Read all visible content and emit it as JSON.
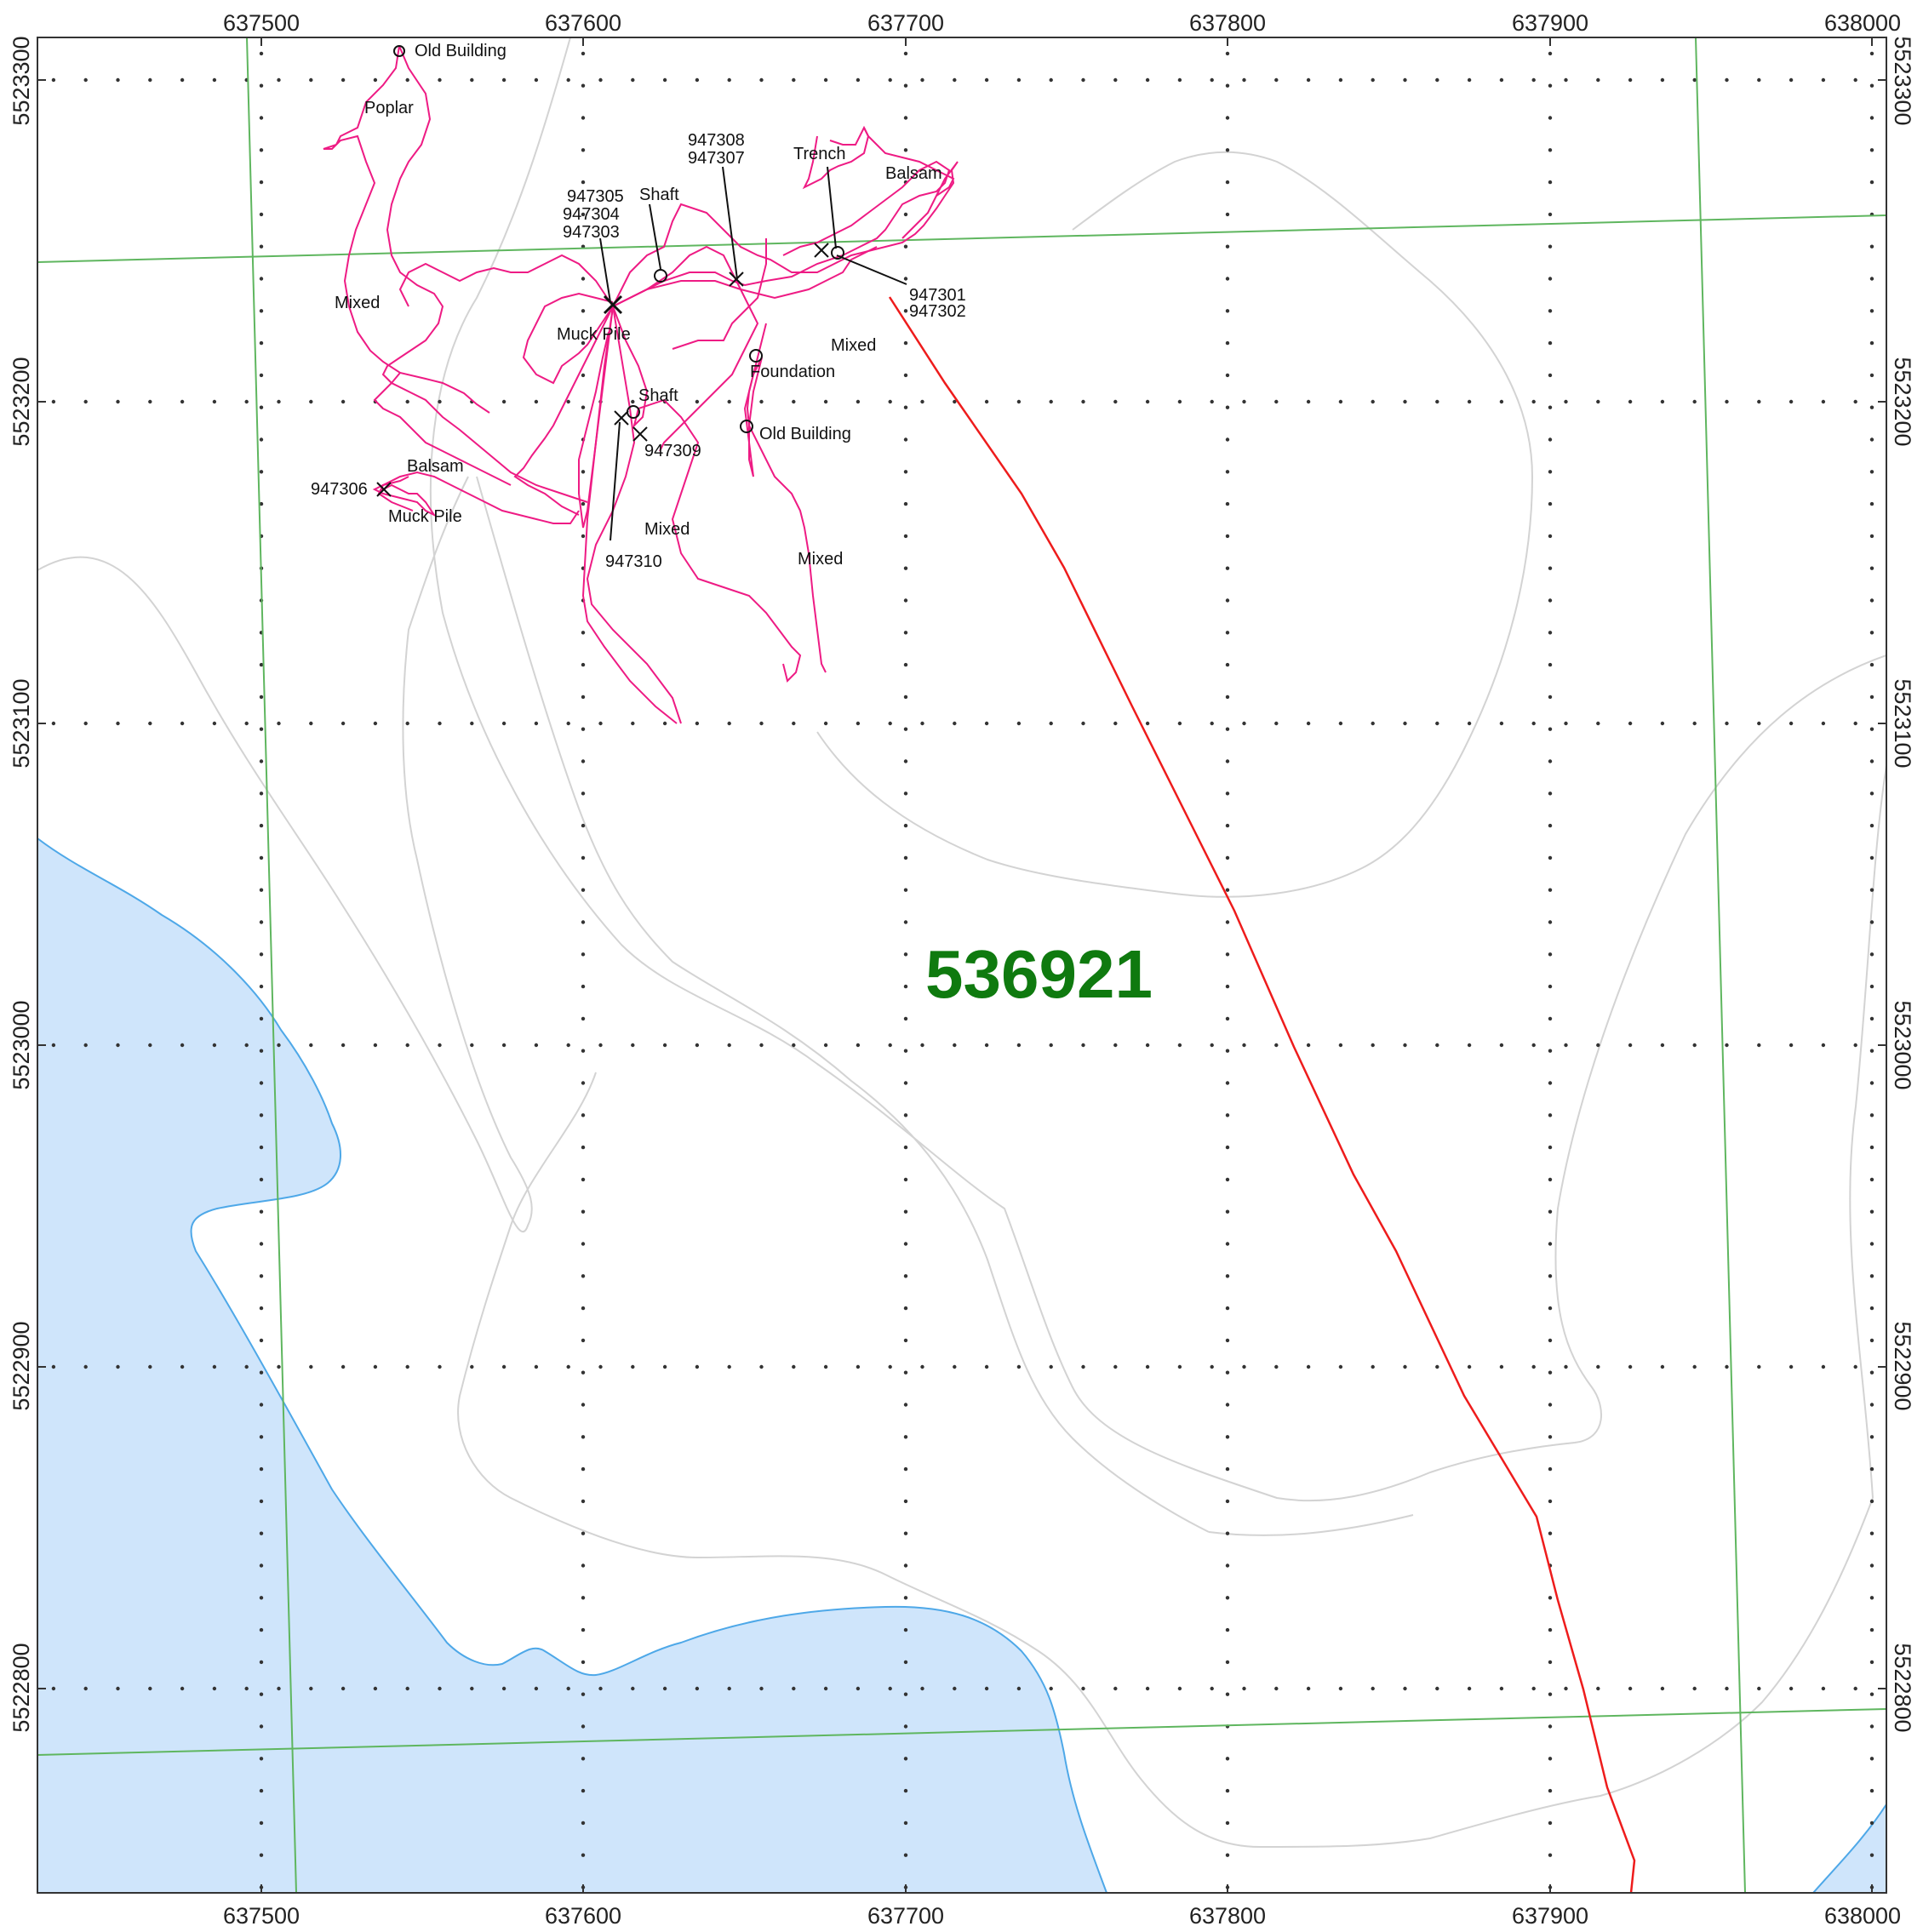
{
  "claim_id": "536921",
  "x_ticks": [
    "637500",
    "637600",
    "637700",
    "637800",
    "637900",
    "638000"
  ],
  "y_ticks": [
    "5523300",
    "5523200",
    "5523100",
    "5523000",
    "5522900",
    "5522800"
  ],
  "sample_labels": [
    "947305",
    "947304",
    "947303",
    "947308",
    "947307",
    "947301",
    "947302",
    "947306",
    "947309",
    "947310"
  ],
  "feature_labels": [
    "Old Building",
    "Poplar",
    "Mixed",
    "Shaft",
    "Trench",
    "Balsam",
    "Muck Pile",
    "Foundation",
    "Mixed",
    "Shaft",
    "Old Building",
    "Balsam",
    "Muck Pile",
    "Mixed",
    "Mixed"
  ],
  "colors": {
    "track": "#ee1b84",
    "water": "#cfe5fb",
    "shoreline": "#4ea8e8",
    "claim_boundary": "#5fb65f",
    "road": "#ee1c1c",
    "contour": "#d3d3d3",
    "grid_dot": "#333333",
    "claim_label": "#0f7a0f"
  }
}
